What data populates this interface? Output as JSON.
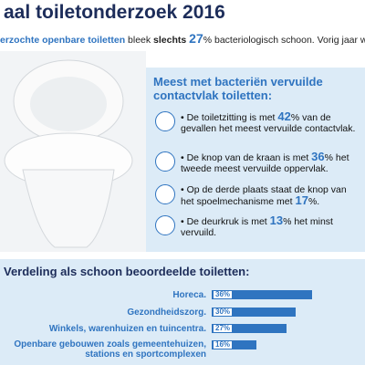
{
  "header": {
    "title": "aal toiletonderzoek 2016",
    "subtitle": {
      "lead": "erzochte openbare toiletten",
      "mid": " bleek ",
      "emphasis": "slechts",
      "number": "27",
      "rest": "% bacteriologisch schoon. Vorig jaar wa"
    }
  },
  "panel": {
    "heading": "Meest met bacteriën vervuilde contactvlak toiletten:",
    "items": [
      {
        "before": "De toiletzitting is met ",
        "number": "42",
        "after": "% van de gevallen het meest vervuilde contactvlak."
      },
      {
        "before": "De knop van de kraan is met ",
        "number": "36",
        "after": "% het tweede meest vervuilde oppervlak."
      },
      {
        "before": "Op de derde plaats staat de knop van het spoelmechanisme met ",
        "number": "17",
        "after": "%."
      },
      {
        "before": "De deurkruk is met ",
        "number": "13",
        "after": "% het minst vervuild."
      }
    ]
  },
  "chart_data": {
    "type": "bar",
    "title": "Verdeling als schoon beoordeelde toiletten:",
    "categories": [
      "Horeca.",
      "Gezondheidszorg.",
      "Winkels, warenhuizen en tuincentra.",
      "Openbare gebouwen zoals gemeentehuizen,\nstations en sportcomplexen"
    ],
    "values": [
      36,
      30,
      27,
      16
    ],
    "value_labels": [
      "36%",
      "30%",
      "27%",
      "16%"
    ],
    "color": "#2f74c0"
  }
}
